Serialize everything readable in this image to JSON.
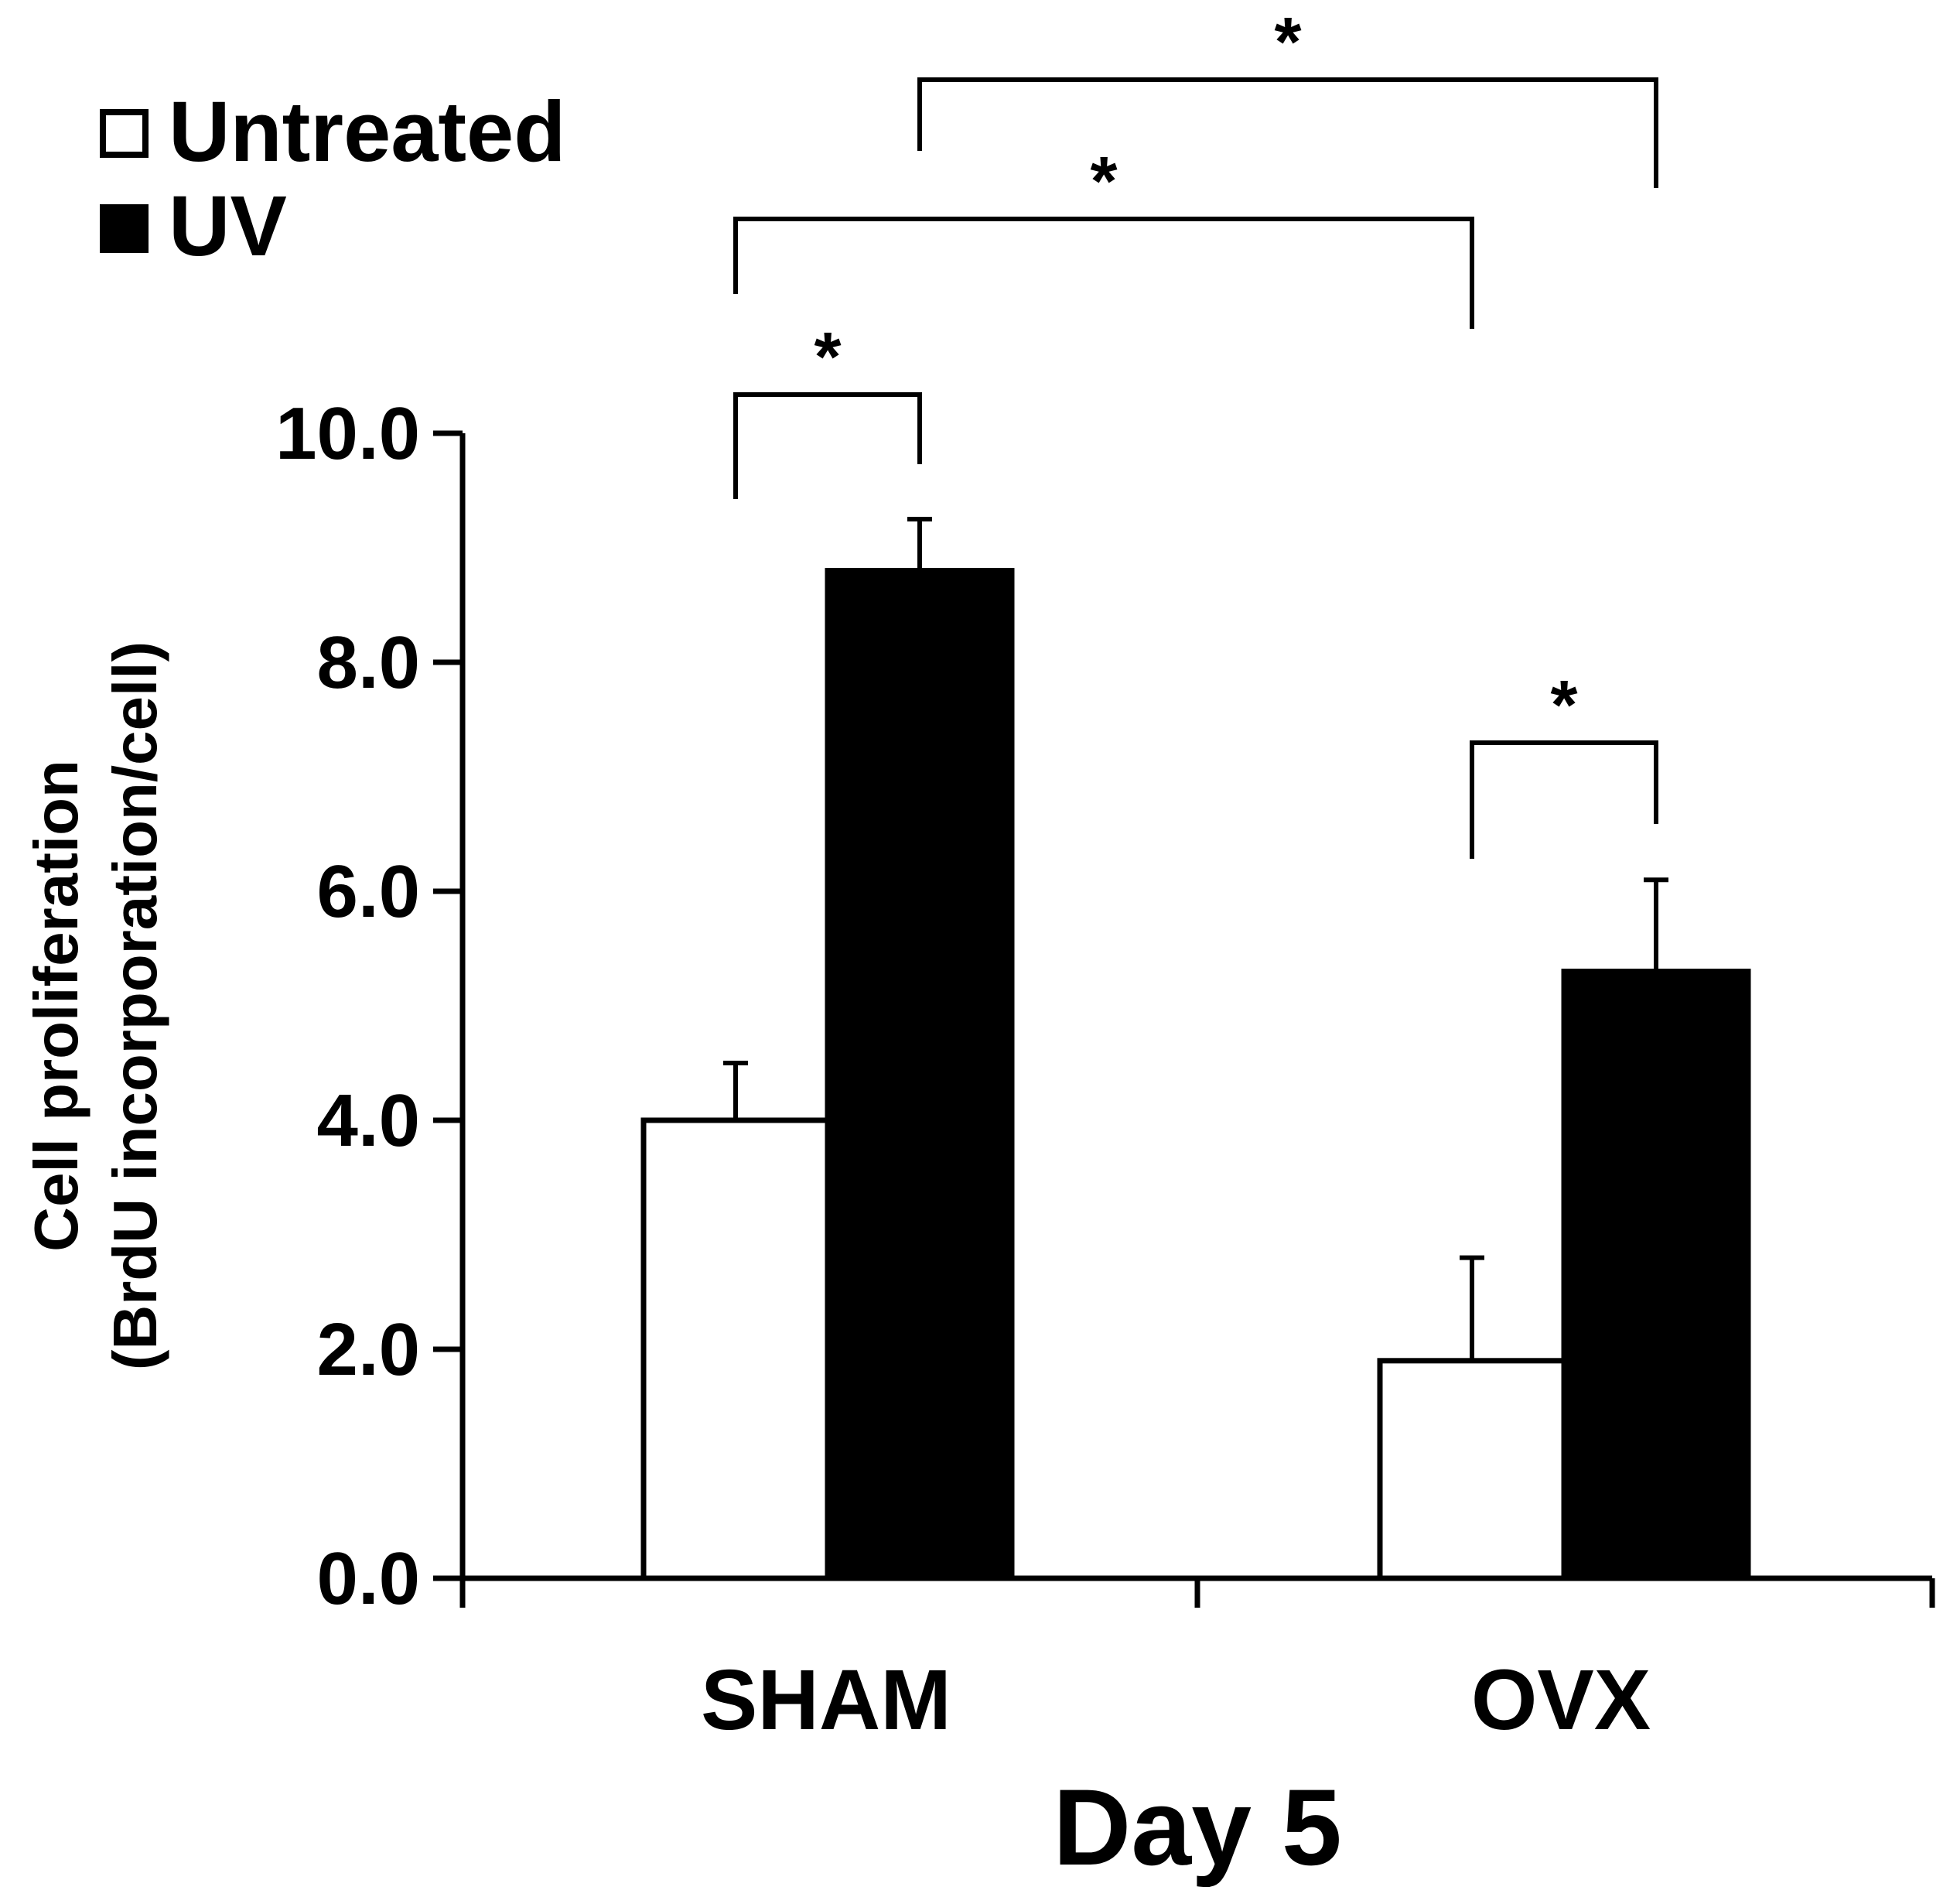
{
  "chart_data": {
    "type": "bar",
    "categories": [
      "SHAM",
      "OVX"
    ],
    "series": [
      {
        "name": "Untreated",
        "color": "#ffffff",
        "values": [
          4.0,
          1.9
        ],
        "errors": [
          0.5,
          0.9
        ]
      },
      {
        "name": "UV",
        "color": "#000000",
        "values": [
          8.8,
          5.3
        ],
        "errors": [
          0.45,
          0.8
        ]
      }
    ],
    "xlabel": "Day 5",
    "ylabel_line1": "Cell proliferation",
    "ylabel_line2": "(BrdU incorporation/cell)",
    "ylim": [
      0,
      10
    ],
    "yticks": [
      "0.0",
      "2.0",
      "4.0",
      "6.0",
      "8.0",
      "10.0"
    ],
    "legend_position": "top-left",
    "significance": [
      {
        "from": "SHAM Untreated",
        "to": "SHAM UV",
        "label": "*"
      },
      {
        "from": "OVX Untreated",
        "to": "OVX UV",
        "label": "*"
      },
      {
        "from": "SHAM Untreated",
        "to": "OVX Untreated",
        "label": "*"
      },
      {
        "from": "SHAM UV",
        "to": "OVX UV",
        "label": "*"
      }
    ]
  }
}
